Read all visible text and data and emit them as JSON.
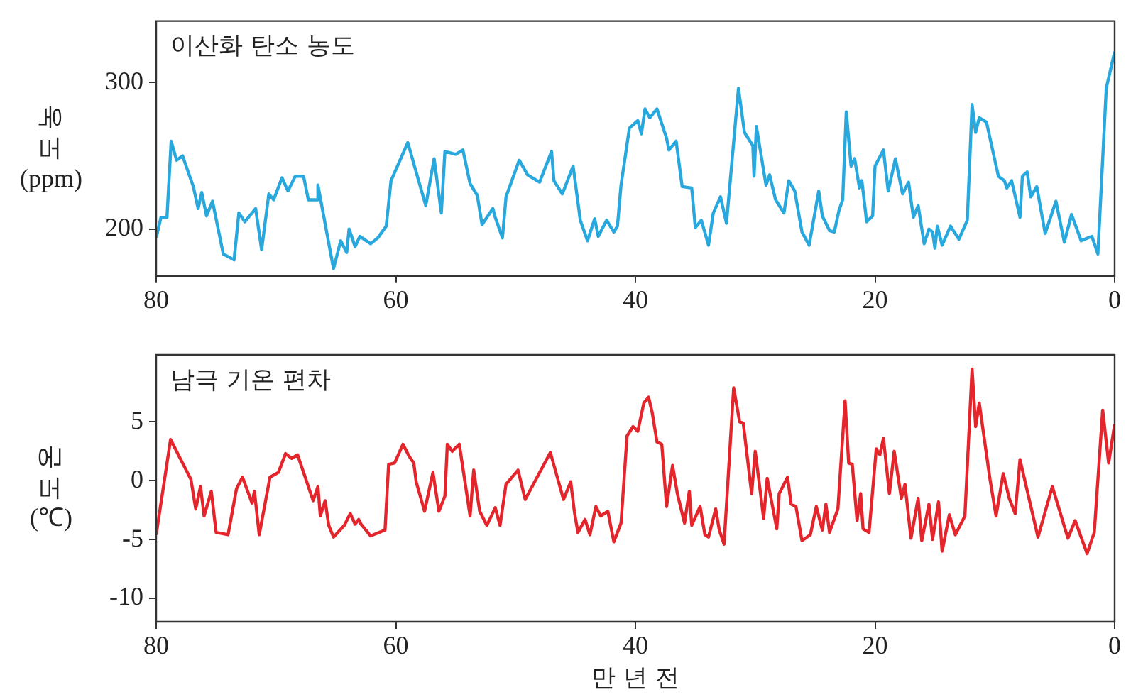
{
  "chart_data": [
    {
      "type": "line",
      "title": "이산화 탄소 농도",
      "ylabel": "농도 (ppm)",
      "xlim": [
        80,
        0
      ],
      "xticks": [
        80,
        60,
        40,
        20,
        0
      ],
      "ylim": [
        168,
        342
      ],
      "yticks": [
        200,
        300
      ],
      "series": [
        {
          "color": "#29a8de",
          "x": [
            80,
            79.6,
            79.1,
            78.75,
            78.3,
            77.8,
            77.2,
            76.9,
            76.5,
            76.2,
            75.8,
            75.3,
            74.4,
            73.5,
            73.1,
            72.6,
            71.7,
            71.2,
            70.6,
            70.2,
            69.5,
            69.0,
            68.4,
            67.7,
            67.3,
            66.6,
            66.5,
            65.2,
            64.6,
            64.1,
            63.9,
            63.4,
            63.0,
            62.1,
            61.5,
            60.8,
            60.4,
            59.0,
            57.5,
            56.8,
            56.2,
            55.9,
            55.0,
            54.4,
            53.8,
            53.2,
            52.8,
            51.9,
            51.7,
            51.1,
            50.8,
            49.7,
            49.0,
            48.0,
            47.0,
            46.8,
            46.1,
            45.2,
            44.6,
            44.0,
            43.4,
            43.1,
            42.4,
            41.8,
            41.5,
            41.2,
            40.5,
            39.8,
            39.5,
            39.2,
            38.8,
            38.2,
            37.4,
            37.2,
            36.6,
            36.1,
            35.3,
            35.0,
            34.5,
            33.9,
            33.5,
            32.9,
            32.4,
            31.4,
            30.9,
            30.2,
            30.1,
            29.9,
            29.1,
            28.8,
            28.3,
            27.6,
            27.2,
            26.7,
            26.1,
            25.5,
            24.7,
            24.4,
            23.8,
            23.4,
            23.0,
            22.7,
            22.4,
            22.0,
            21.7,
            21.3,
            21.1,
            20.7,
            20.2,
            20.0,
            19.3,
            18.9,
            18.3,
            17.7,
            17.2,
            16.8,
            16.4,
            15.9,
            15.5,
            15.2,
            15.0,
            14.8,
            14.4,
            13.7,
            13.0,
            12.3,
            11.9,
            11.6,
            11.3,
            10.7,
            9.7,
            9.2,
            9.0,
            8.6,
            7.9,
            7.7,
            7.3,
            7.0,
            6.5,
            5.8,
            4.9,
            4.2,
            3.6,
            2.8,
            1.9,
            1.4,
            0.7,
            0
          ],
          "values": [
            194,
            208,
            208,
            260,
            247,
            250,
            236,
            229,
            214,
            225,
            209,
            219,
            183,
            179,
            211,
            205,
            214,
            186,
            224,
            220,
            235,
            226,
            236,
            236,
            220,
            220,
            230,
            173,
            192,
            184,
            200,
            188,
            195,
            190,
            194,
            202,
            233,
            259,
            216,
            248,
            211,
            253,
            251,
            254,
            231,
            223,
            203,
            214,
            208,
            194,
            222,
            247,
            237,
            232,
            253,
            233,
            224,
            243,
            206,
            192,
            207,
            195,
            206,
            198,
            202,
            230,
            269,
            274,
            265,
            282,
            276,
            282,
            262,
            254,
            260,
            229,
            228,
            201,
            206,
            189,
            211,
            222,
            204,
            296,
            266,
            257,
            236,
            270,
            230,
            237,
            220,
            211,
            233,
            226,
            198,
            189,
            226,
            209,
            199,
            198,
            213,
            220,
            280,
            243,
            248,
            228,
            233,
            205,
            209,
            243,
            254,
            226,
            248,
            224,
            232,
            208,
            216,
            190,
            200,
            198,
            187,
            202,
            189,
            202,
            193,
            206,
            285,
            266,
            276,
            273,
            236,
            233,
            228,
            233,
            208,
            236,
            239,
            222,
            229,
            197,
            219,
            191,
            210,
            192,
            195,
            183,
            296,
            321
          ]
        }
      ]
    },
    {
      "type": "line",
      "title": "남극 기온 편차",
      "ylabel": "온도 (℃)",
      "xlabel": "만 년 전",
      "xlim": [
        80,
        0
      ],
      "xticks": [
        80,
        60,
        40,
        20,
        0
      ],
      "ylim": [
        -12,
        10.7
      ],
      "yticks": [
        -10,
        -5,
        0,
        5
      ],
      "series": [
        {
          "color": "#e4262c",
          "x": [
            80,
            78.8,
            77.1,
            76.7,
            76.3,
            76.0,
            75.4,
            75.0,
            74.0,
            73.3,
            72.8,
            72.0,
            71.8,
            71.4,
            70.5,
            69.8,
            69.2,
            68.7,
            68.2,
            66.9,
            66.5,
            66.3,
            65.9,
            65.6,
            65.2,
            64.3,
            63.8,
            63.4,
            63.1,
            62.9,
            62.1,
            60.9,
            60.6,
            60.1,
            59.4,
            58.9,
            58.5,
            58.3,
            57.6,
            56.9,
            56.4,
            55.9,
            55.7,
            55.3,
            54.7,
            53.8,
            53.5,
            53.0,
            52.4,
            51.7,
            51.3,
            50.8,
            49.8,
            49.2,
            47.1,
            46.0,
            45.4,
            45.1,
            44.8,
            44.2,
            43.8,
            43.3,
            42.9,
            42.3,
            41.8,
            41.2,
            40.7,
            40.2,
            39.8,
            39.3,
            38.9,
            38.6,
            38.2,
            37.8,
            37.4,
            36.9,
            36.5,
            35.9,
            35.5,
            35.3,
            34.6,
            34.2,
            33.9,
            33.3,
            33.0,
            32.6,
            31.8,
            31.3,
            31.0,
            30.3,
            30.0,
            29.3,
            29.0,
            28.2,
            28.0,
            27.3,
            27.0,
            26.6,
            26.1,
            25.4,
            24.9,
            24.4,
            24.1,
            23.8,
            23.1,
            22.5,
            22.2,
            21.9,
            21.5,
            21.2,
            21.0,
            20.5,
            19.9,
            19.6,
            19.3,
            18.8,
            18.4,
            17.8,
            17.5,
            17.0,
            16.4,
            16.1,
            15.5,
            15.2,
            14.7,
            14.4,
            13.8,
            13.3,
            12.5,
            11.9,
            11.6,
            11.3,
            10.4,
            9.9,
            9.3,
            8.8,
            8.3,
            7.9,
            6.4,
            5.2,
            3.9,
            3.3,
            2.3,
            1.7,
            1.0,
            0.5,
            0
          ],
          "values": [
            -4.6,
            3.5,
            0.1,
            -2.4,
            -0.5,
            -3.0,
            -0.9,
            -4.4,
            -4.6,
            -0.7,
            0.3,
            -1.9,
            -0.9,
            -4.6,
            0.3,
            0.7,
            2.3,
            1.9,
            2.2,
            -1.7,
            -0.5,
            -3.0,
            -1.7,
            -3.8,
            -4.8,
            -3.8,
            -2.8,
            -3.7,
            -3.3,
            -3.7,
            -4.7,
            -4.2,
            1.4,
            1.5,
            3.1,
            2.1,
            1.5,
            -0.1,
            -2.6,
            0.7,
            -2.6,
            -1.3,
            3.1,
            2.5,
            3.1,
            -3.0,
            0.9,
            -2.6,
            -3.8,
            -2.3,
            -3.8,
            -0.3,
            0.9,
            -1.6,
            2.4,
            -1.6,
            -0.1,
            -2.6,
            -4.4,
            -3.3,
            -4.6,
            -2.2,
            -3.0,
            -2.6,
            -5.2,
            -3.6,
            3.8,
            4.6,
            4.2,
            6.6,
            7.1,
            5.8,
            3.3,
            3.1,
            -2.2,
            1.3,
            -1.1,
            -3.6,
            -0.9,
            -3.8,
            -2.2,
            -4.6,
            -4.8,
            -2.4,
            -4.2,
            -5.4,
            7.9,
            5.0,
            4.9,
            -1.1,
            2.5,
            -3.2,
            0.2,
            -4.1,
            -1.1,
            0.3,
            -2.0,
            -2.2,
            -5.1,
            -4.6,
            -2.2,
            -4.2,
            -2.0,
            -4.4,
            -2.4,
            6.8,
            1.5,
            1.4,
            -3.4,
            -1.1,
            -4.1,
            -4.4,
            2.7,
            2.2,
            3.6,
            -1.1,
            2.5,
            -1.5,
            -0.3,
            -4.9,
            -1.5,
            -5.1,
            -2.0,
            -5.0,
            -1.8,
            -6.0,
            -2.9,
            -4.6,
            -3.0,
            9.5,
            4.6,
            6.6,
            0.1,
            -3.0,
            0.6,
            -1.5,
            -2.8,
            1.8,
            -4.8,
            -0.5,
            -4.9,
            -3.4,
            -6.2,
            -4.4,
            6.0,
            1.5,
            4.8
          ]
        }
      ]
    }
  ]
}
